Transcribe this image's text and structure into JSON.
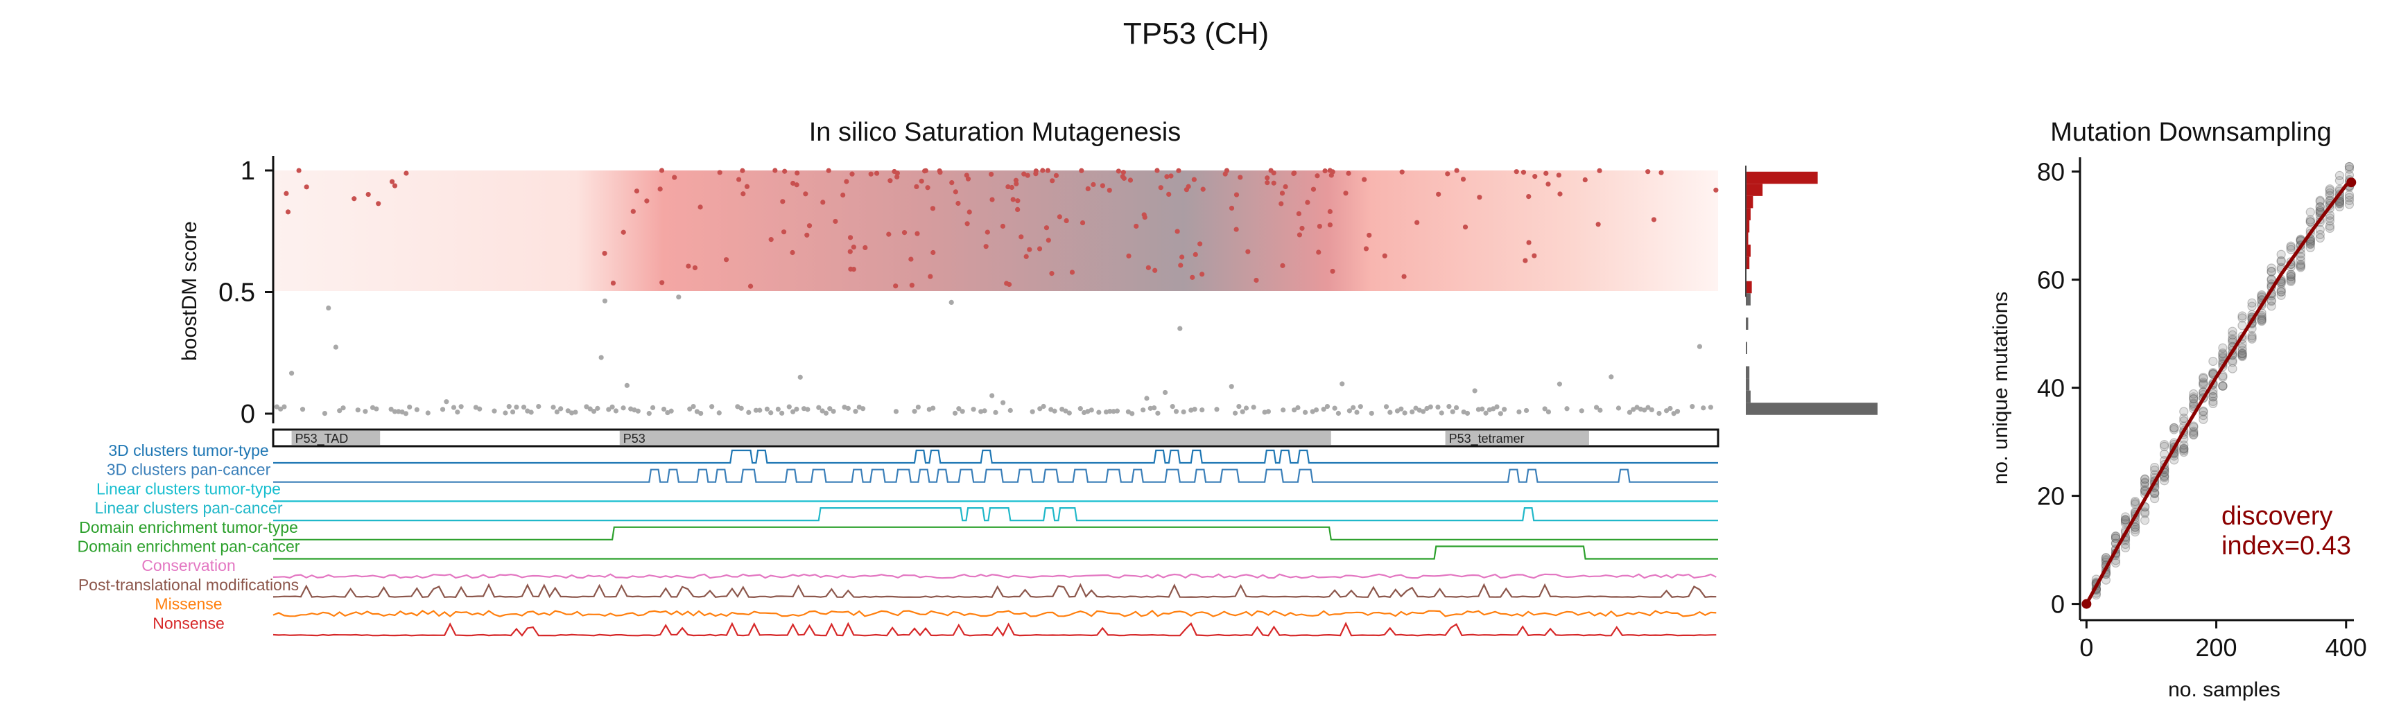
{
  "figure": {
    "title": "TP53 (CH)",
    "accent_positive": "#b51616",
    "accent_neutral": "#666666"
  },
  "chart_data": [
    {
      "type": "scatter",
      "id": "saturation",
      "title": "In silico Saturation Mutagenesis",
      "ylabel": "boostDM score",
      "xlim": [
        1,
        393
      ],
      "ylim": [
        0,
        1
      ],
      "yticks": [
        {
          "v": 0,
          "label": "0"
        },
        {
          "v": 0.5,
          "label": "0.5"
        },
        {
          "v": 1,
          "label": "1"
        }
      ],
      "threshold": 0.5,
      "colors": {
        "driver_point": "#c8504f",
        "passenger_point": "#a8a8a8",
        "band": "#f4a7a4",
        "band_center": "#a8a0a8"
      },
      "driver_clusters": [
        {
          "center": 145,
          "span": 60,
          "count": 40
        },
        {
          "center": 175,
          "span": 40,
          "count": 50
        },
        {
          "center": 245,
          "span": 45,
          "count": 55
        },
        {
          "center": 270,
          "span": 40,
          "count": 35
        },
        {
          "center": 325,
          "span": 25,
          "count": 12
        },
        {
          "center": 20,
          "span": 20,
          "count": 10
        },
        {
          "center": 365,
          "span": 30,
          "count": 14
        }
      ],
      "histogram": {
        "bins": [
          {
            "y": 0.97,
            "count": 60,
            "class": "driver"
          },
          {
            "y": 0.92,
            "count": 14,
            "class": "driver"
          },
          {
            "y": 0.87,
            "count": 6,
            "class": "driver"
          },
          {
            "y": 0.82,
            "count": 4,
            "class": "driver"
          },
          {
            "y": 0.77,
            "count": 3,
            "class": "driver"
          },
          {
            "y": 0.72,
            "count": 2,
            "class": "driver"
          },
          {
            "y": 0.67,
            "count": 4,
            "class": "driver"
          },
          {
            "y": 0.62,
            "count": 3,
            "class": "driver"
          },
          {
            "y": 0.52,
            "count": 5,
            "class": "driver"
          },
          {
            "y": 0.47,
            "count": 4,
            "class": "passenger"
          },
          {
            "y": 0.37,
            "count": 2,
            "class": "passenger"
          },
          {
            "y": 0.27,
            "count": 1,
            "class": "passenger"
          },
          {
            "y": 0.17,
            "count": 3,
            "class": "passenger"
          },
          {
            "y": 0.12,
            "count": 3,
            "class": "passenger"
          },
          {
            "y": 0.07,
            "count": 4,
            "class": "passenger"
          },
          {
            "y": 0.02,
            "count": 110,
            "class": "passenger"
          }
        ]
      },
      "domains": [
        {
          "label": "P53_TAD",
          "start": 6,
          "end": 30
        },
        {
          "label": "P53",
          "start": 95,
          "end": 288
        },
        {
          "label": "P53_tetramer",
          "start": 319,
          "end": 358
        }
      ],
      "tracks": [
        {
          "name": "3D clusters tumor-type",
          "color": "#1f77b4",
          "kind": "binary",
          "on": [
            [
              125,
              130
            ],
            [
              132,
              134
            ],
            [
              175,
              177
            ],
            [
              179,
              181
            ],
            [
              193,
              195
            ],
            [
              240,
              242
            ],
            [
              244,
              246
            ],
            [
              250,
              252
            ],
            [
              270,
              272
            ],
            [
              274,
              276
            ],
            [
              279,
              281
            ]
          ]
        },
        {
          "name": "3D clusters pan-cancer",
          "color": "#3a7fb9",
          "kind": "binary",
          "on": [
            [
              103,
              105
            ],
            [
              108,
              110
            ],
            [
              116,
              118
            ],
            [
              121,
              123
            ],
            [
              128,
              131
            ],
            [
              140,
              142
            ],
            [
              147,
              150
            ],
            [
              158,
              160
            ],
            [
              163,
              166
            ],
            [
              170,
              173
            ],
            [
              176,
              178
            ],
            [
              181,
              183
            ],
            [
              187,
              190
            ],
            [
              194,
              198
            ],
            [
              203,
              206
            ],
            [
              210,
              213
            ],
            [
              218,
              221
            ],
            [
              227,
              230
            ],
            [
              234,
              236
            ],
            [
              243,
              246
            ],
            [
              251,
              253
            ],
            [
              258,
              262
            ],
            [
              270,
              274
            ],
            [
              279,
              282
            ],
            [
              336,
              338
            ],
            [
              341,
              343
            ],
            [
              366,
              368
            ]
          ]
        },
        {
          "name": "Linear clusters tumor-type",
          "color": "#17becf",
          "kind": "binary",
          "on": []
        },
        {
          "name": "Linear clusters pan-cancer",
          "color": "#20b8c9",
          "kind": "binary",
          "on": [
            [
              149,
              186
            ],
            [
              186,
              187
            ],
            [
              189,
              193
            ],
            [
              195,
              200
            ],
            [
              210,
              212
            ],
            [
              214,
              218
            ],
            [
              340,
              342
            ]
          ]
        },
        {
          "name": "Domain enrichment tumor-type",
          "color": "#2ca02c",
          "kind": "binary",
          "on": [
            [
              93,
              287
            ]
          ]
        },
        {
          "name": "Domain enrichment pan-cancer",
          "color": "#2ca02c",
          "kind": "binary",
          "on": [
            [
              316,
              356
            ]
          ]
        },
        {
          "name": "Conservation",
          "color": "#e377c2",
          "kind": "noise",
          "seed": 11,
          "amp": 0.6
        },
        {
          "name": "Post-translational modifications",
          "color": "#8c564b",
          "kind": "spikes",
          "seed": 23,
          "amp": 1.0
        },
        {
          "name": "Missense",
          "color": "#ff7f0e",
          "kind": "noise",
          "seed": 37,
          "amp": 0.9
        },
        {
          "name": "Nonsense",
          "color": "#d62728",
          "kind": "spikes",
          "seed": 51,
          "amp": 1.0
        }
      ]
    },
    {
      "type": "scatter",
      "id": "downsampling",
      "title": "Mutation Downsampling",
      "xlabel": "no. samples",
      "ylabel": "no. unique mutations",
      "xlim": [
        -10,
        412
      ],
      "ylim": [
        -3,
        82
      ],
      "xticks": [
        {
          "v": 0,
          "label": "0"
        },
        {
          "v": 200,
          "label": "200"
        },
        {
          "v": 400,
          "label": "400"
        }
      ],
      "yticks": [
        {
          "v": 0,
          "label": "0"
        },
        {
          "v": 20,
          "label": "20"
        },
        {
          "v": 40,
          "label": "40"
        },
        {
          "v": 60,
          "label": "60"
        },
        {
          "v": 80,
          "label": "80"
        }
      ],
      "curve": {
        "color": "#8b0000",
        "points": [
          [
            0,
            0
          ],
          [
            50,
            11
          ],
          [
            100,
            21.5
          ],
          [
            150,
            32
          ],
          [
            200,
            42
          ],
          [
            250,
            51.5
          ],
          [
            300,
            61
          ],
          [
            350,
            69.5
          ],
          [
            400,
            77.5
          ],
          [
            408,
            78
          ]
        ]
      },
      "sample_x": [
        0,
        15,
        30,
        45,
        60,
        75,
        90,
        105,
        120,
        135,
        150,
        165,
        180,
        195,
        210,
        225,
        240,
        255,
        270,
        285,
        300,
        315,
        330,
        345,
        360,
        375,
        390,
        405
      ],
      "spread": 4,
      "annotation": {
        "line1": "discovery",
        "line2": "index=0.43",
        "color": "#8b0000"
      }
    }
  ]
}
